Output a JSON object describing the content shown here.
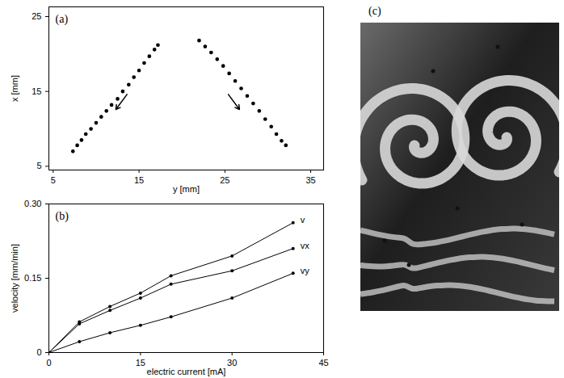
{
  "chart_data": [
    {
      "panel": "(a)",
      "type": "scatter",
      "x_label": "y [mm]",
      "y_label": "x [mm]",
      "xlim": [
        4.5,
        36.5
      ],
      "ylim": [
        4.5,
        26.3
      ],
      "xticks": [
        5,
        15,
        25,
        35
      ],
      "yticks": [
        5,
        15,
        25
      ],
      "series": [
        {
          "color": "black",
          "marker": "dot",
          "x": [
            7.3,
            7.8,
            8.3,
            8.8,
            9.4,
            10.0,
            10.6,
            11.2,
            11.8,
            12.5,
            13.1,
            13.8,
            14.4,
            15.0,
            15.6,
            16.2,
            16.8,
            17.2
          ],
          "values": [
            7.0,
            7.8,
            8.5,
            9.3,
            10.0,
            10.8,
            11.6,
            12.4,
            13.2,
            14.0,
            15.0,
            15.9,
            16.9,
            17.8,
            18.8,
            19.7,
            20.6,
            21.2
          ]
        },
        {
          "color": "black",
          "marker": "dot",
          "x": [
            22.0,
            22.7,
            23.4,
            24.1,
            24.8,
            25.5,
            26.2,
            26.9,
            27.6,
            28.3,
            29.0,
            29.7,
            30.4,
            31.0,
            31.6,
            32.1
          ],
          "values": [
            21.8,
            21.0,
            20.2,
            19.3,
            18.4,
            17.4,
            16.4,
            15.4,
            14.4,
            13.4,
            12.4,
            11.3,
            10.3,
            9.3,
            8.4,
            7.8
          ]
        }
      ],
      "arrows": [
        {
          "x1": 13.6,
          "y1": 14.6,
          "x2": 12.3,
          "y2": 12.6
        },
        {
          "x1": 25.4,
          "y1": 14.6,
          "x2": 26.7,
          "y2": 12.6
        }
      ]
    },
    {
      "panel": "(b)",
      "type": "line",
      "x_label": "electric current [mA]",
      "y_label": "velocity [mm/min]",
      "x": [
        0,
        5,
        10,
        15,
        20,
        30,
        40
      ],
      "xlim": [
        0,
        45
      ],
      "xticks": [
        0,
        15,
        30,
        45
      ],
      "ylim": [
        0,
        0.3
      ],
      "yticks": [
        0,
        0.15,
        {
          "value": 0.3,
          "label": "0.30"
        }
      ],
      "series": [
        {
          "name": "v",
          "color": "black",
          "marker": "dot",
          "values": [
            0,
            0.062,
            0.093,
            0.12,
            0.155,
            0.195,
            0.262
          ]
        },
        {
          "name": "vx",
          "color": "black",
          "marker": "dot",
          "values": [
            0,
            0.058,
            0.085,
            0.11,
            0.138,
            0.165,
            0.21
          ]
        },
        {
          "name": "vy",
          "color": "black",
          "marker": "dot",
          "values": [
            0,
            0.022,
            0.04,
            0.055,
            0.072,
            0.11,
            0.16
          ]
        }
      ]
    }
  ],
  "image": {
    "panel": "(c)"
  }
}
